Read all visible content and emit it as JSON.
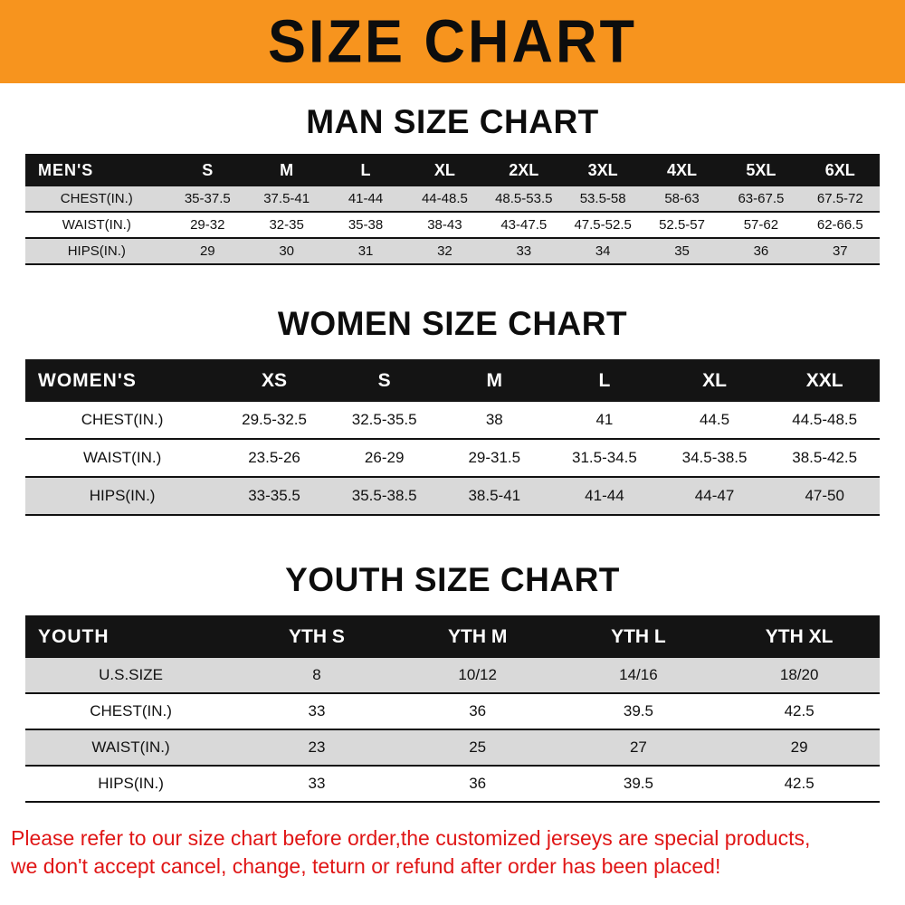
{
  "banner": {
    "title": "SIZE CHART"
  },
  "colors": {
    "banner_bg": "#f7941e",
    "header_bg": "#141414",
    "stripe_gray": "#d9d9d9",
    "footer_red": "#e01616"
  },
  "chart_data": [
    {
      "type": "table",
      "title": "MAN SIZE CHART",
      "columns": [
        "MEN'S",
        "S",
        "M",
        "L",
        "XL",
        "2XL",
        "3XL",
        "4XL",
        "5XL",
        "6XL"
      ],
      "rows": [
        [
          "CHEST(IN.)",
          "35-37.5",
          "37.5-41",
          "41-44",
          "44-48.5",
          "48.5-53.5",
          "53.5-58",
          "58-63",
          "63-67.5",
          "67.5-72"
        ],
        [
          "WAIST(IN.)",
          "29-32",
          "32-35",
          "35-38",
          "38-43",
          "43-47.5",
          "47.5-52.5",
          "52.5-57",
          "57-62",
          "62-66.5"
        ],
        [
          "HIPS(IN.)",
          "29",
          "30",
          "31",
          "32",
          "33",
          "34",
          "35",
          "36",
          "37"
        ]
      ],
      "stripes": [
        "#d9d9d9",
        "#ffffff",
        "#d9d9d9"
      ]
    },
    {
      "type": "table",
      "title": "WOMEN SIZE CHART",
      "columns": [
        "WOMEN'S",
        "XS",
        "S",
        "M",
        "L",
        "XL",
        "XXL"
      ],
      "rows": [
        [
          "CHEST(IN.)",
          "29.5-32.5",
          "32.5-35.5",
          "38",
          "41",
          "44.5",
          "44.5-48.5"
        ],
        [
          "WAIST(IN.)",
          "23.5-26",
          "26-29",
          "29-31.5",
          "31.5-34.5",
          "34.5-38.5",
          "38.5-42.5"
        ],
        [
          "HIPS(IN.)",
          "33-35.5",
          "35.5-38.5",
          "38.5-41",
          "41-44",
          "44-47",
          "47-50"
        ]
      ],
      "stripes": [
        "#ffffff",
        "#ffffff",
        "#d9d9d9"
      ]
    },
    {
      "type": "table",
      "title": "YOUTH SIZE CHART",
      "columns": [
        "YOUTH",
        "YTH S",
        "YTH M",
        "YTH L",
        "YTH XL"
      ],
      "rows": [
        [
          "U.S.SIZE",
          "8",
          "10/12",
          "14/16",
          "18/20"
        ],
        [
          "CHEST(IN.)",
          "33",
          "36",
          "39.5",
          "42.5"
        ],
        [
          "WAIST(IN.)",
          "23",
          "25",
          "27",
          "29"
        ],
        [
          "HIPS(IN.)",
          "33",
          "36",
          "39.5",
          "42.5"
        ]
      ],
      "stripes": [
        "#d9d9d9",
        "#ffffff",
        "#d9d9d9",
        "#ffffff"
      ]
    }
  ],
  "footer": {
    "line1": "Please refer to our size chart before order,the customized jerseys are special products,",
    "line2": "we don't accept cancel, change, teturn or refund after order has been placed!"
  }
}
